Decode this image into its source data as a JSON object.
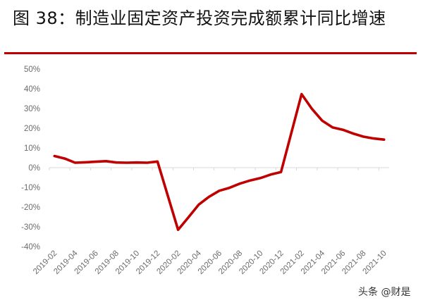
{
  "title": "图 38：制造业固定资产投资完成额累计同比增速",
  "watermark": "头条 @财是",
  "colors": {
    "divider": "#c00000",
    "series": "#c00000",
    "axis": "#d9d9d9",
    "tick_label": "#6b6b6b"
  },
  "chart_data": {
    "type": "line",
    "title": "制造业固定资产投资完成额累计同比增速",
    "xlabel": "",
    "ylabel": "",
    "ylim": [
      -40,
      50
    ],
    "yticks": [
      "50%",
      "40%",
      "30%",
      "20%",
      "10%",
      "0%",
      "-10%",
      "-20%",
      "-30%",
      "-40%"
    ],
    "ytick_values": [
      50,
      40,
      30,
      20,
      10,
      0,
      -10,
      -20,
      -30,
      -40
    ],
    "xtick_labels": [
      "2019-02",
      "2019-04",
      "2019-06",
      "2019-08",
      "2019-10",
      "2019-12",
      "2020-02",
      "2020-04",
      "2020-06",
      "2020-08",
      "2020-10",
      "2020-12",
      "2021-02",
      "2021-04",
      "2021-06",
      "2021-08",
      "2021-10"
    ],
    "grid": false,
    "legend": null,
    "categories": [
      "2019-02",
      "2019-03",
      "2019-04",
      "2019-05",
      "2019-06",
      "2019-07",
      "2019-08",
      "2019-09",
      "2019-10",
      "2019-11",
      "2019-12",
      "2020-01",
      "2020-02",
      "2020-03",
      "2020-04",
      "2020-05",
      "2020-06",
      "2020-07",
      "2020-08",
      "2020-09",
      "2020-10",
      "2020-11",
      "2020-12",
      "2021-01",
      "2021-02",
      "2021-03",
      "2021-04",
      "2021-05",
      "2021-06",
      "2021-07",
      "2021-08",
      "2021-09",
      "2021-10"
    ],
    "series": [
      {
        "name": "制造业固定资产投资完成额累计同比",
        "unit": "%",
        "values": [
          5.9,
          4.6,
          2.5,
          2.7,
          3.0,
          3.3,
          2.6,
          2.5,
          2.6,
          2.5,
          3.1,
          null,
          -31.5,
          -25.2,
          -18.8,
          -14.8,
          -11.7,
          -10.2,
          -8.1,
          -6.5,
          -5.3,
          -3.5,
          -2.2,
          null,
          37.3,
          29.8,
          23.8,
          20.4,
          19.2,
          17.3,
          15.7,
          14.8,
          14.2
        ]
      }
    ]
  }
}
